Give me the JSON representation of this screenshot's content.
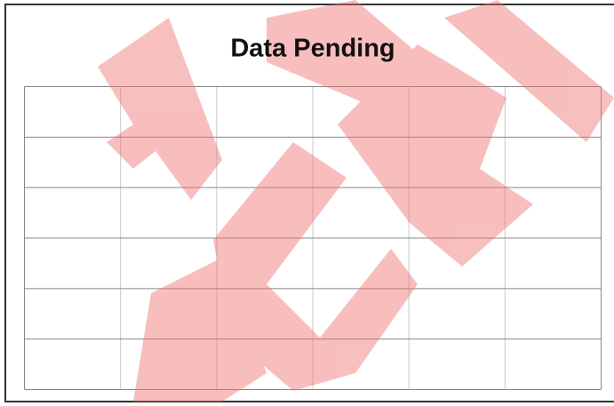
{
  "header": {
    "title": "Data Pending"
  }
}
